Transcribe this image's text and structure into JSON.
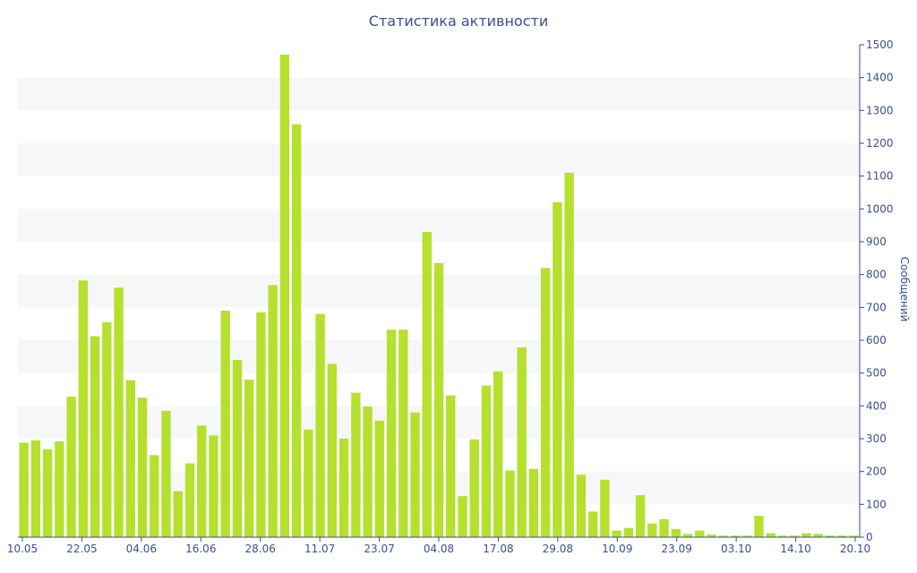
{
  "chart_data": {
    "type": "bar",
    "title": "Статистика активности",
    "ylabel": "Сообщений",
    "xlabel": "",
    "ylim": [
      0,
      1500
    ],
    "y_ticks": [
      0,
      100,
      200,
      300,
      400,
      500,
      600,
      700,
      800,
      900,
      1000,
      1100,
      1200,
      1300,
      1400,
      1500
    ],
    "x_tick_labels": [
      "10.05",
      "22.05",
      "04.06",
      "16.06",
      "28.06",
      "11.07",
      "23.07",
      "04.08",
      "17.08",
      "29.08",
      "10.09",
      "23.09",
      "03.10",
      "14.10",
      "20.10"
    ],
    "y_axis_position": "right",
    "grid": "horizontal bands",
    "colors": {
      "bar": "#b5e02e",
      "axis": "#3b4f8f",
      "band": "#f7f7f7"
    },
    "values": [
      288,
      295,
      268,
      292,
      428,
      782,
      612,
      655,
      760,
      478,
      425,
      250,
      385,
      140,
      225,
      340,
      310,
      690,
      540,
      480,
      685,
      768,
      1470,
      1258,
      328,
      680,
      528,
      300,
      440,
      398,
      355,
      632,
      632,
      380,
      930,
      835,
      432,
      125,
      298,
      462,
      505,
      203,
      578,
      208,
      820,
      1020,
      1110,
      190,
      78,
      175,
      20,
      28,
      128,
      42,
      55,
      25,
      10,
      20,
      8,
      5,
      5,
      5,
      65,
      12,
      5,
      5,
      12,
      10,
      5,
      5,
      5
    ]
  }
}
